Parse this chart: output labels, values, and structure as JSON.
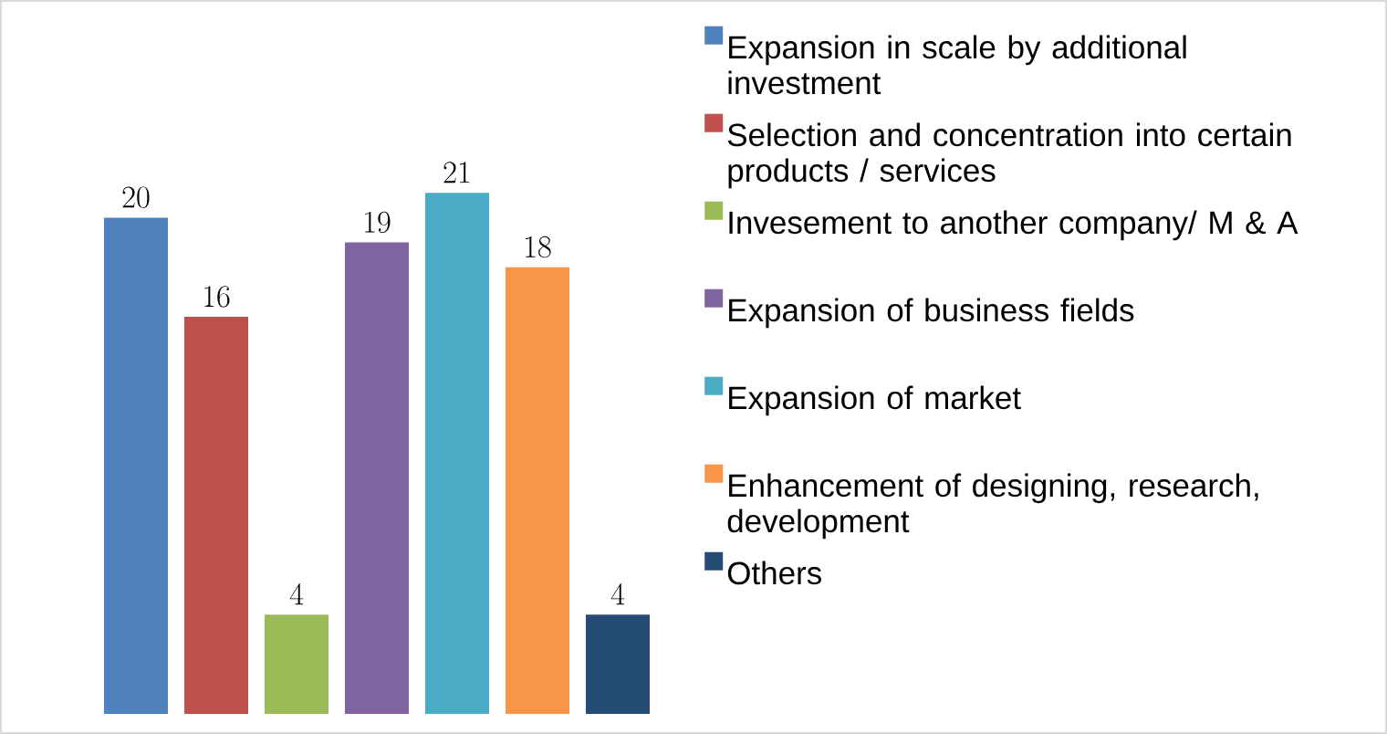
{
  "chart_data": {
    "type": "bar",
    "categories": [
      null
    ],
    "data_labels": true,
    "legend": "right",
    "series": [
      {
        "name": "Expansion in scale by additional investment",
        "color": "#4f81bd",
        "values": [
          20
        ]
      },
      {
        "name": "Selection and concentration into certain products / services",
        "color": "#c0504d",
        "values": [
          16
        ]
      },
      {
        "name": "Invesement to another company/ M & A",
        "color": "#9bbb59",
        "values": [
          4
        ]
      },
      {
        "name": "Expansion of business fields",
        "color": "#8064a2",
        "values": [
          19
        ]
      },
      {
        "name": "Expansion of market",
        "color": "#4bacc6",
        "values": [
          21
        ]
      },
      {
        "name": "Enhancement of designing, research, development",
        "color": "#f79646",
        "values": [
          18
        ]
      },
      {
        "name": "Others",
        "color": "#254c74",
        "values": [
          4
        ]
      }
    ]
  }
}
